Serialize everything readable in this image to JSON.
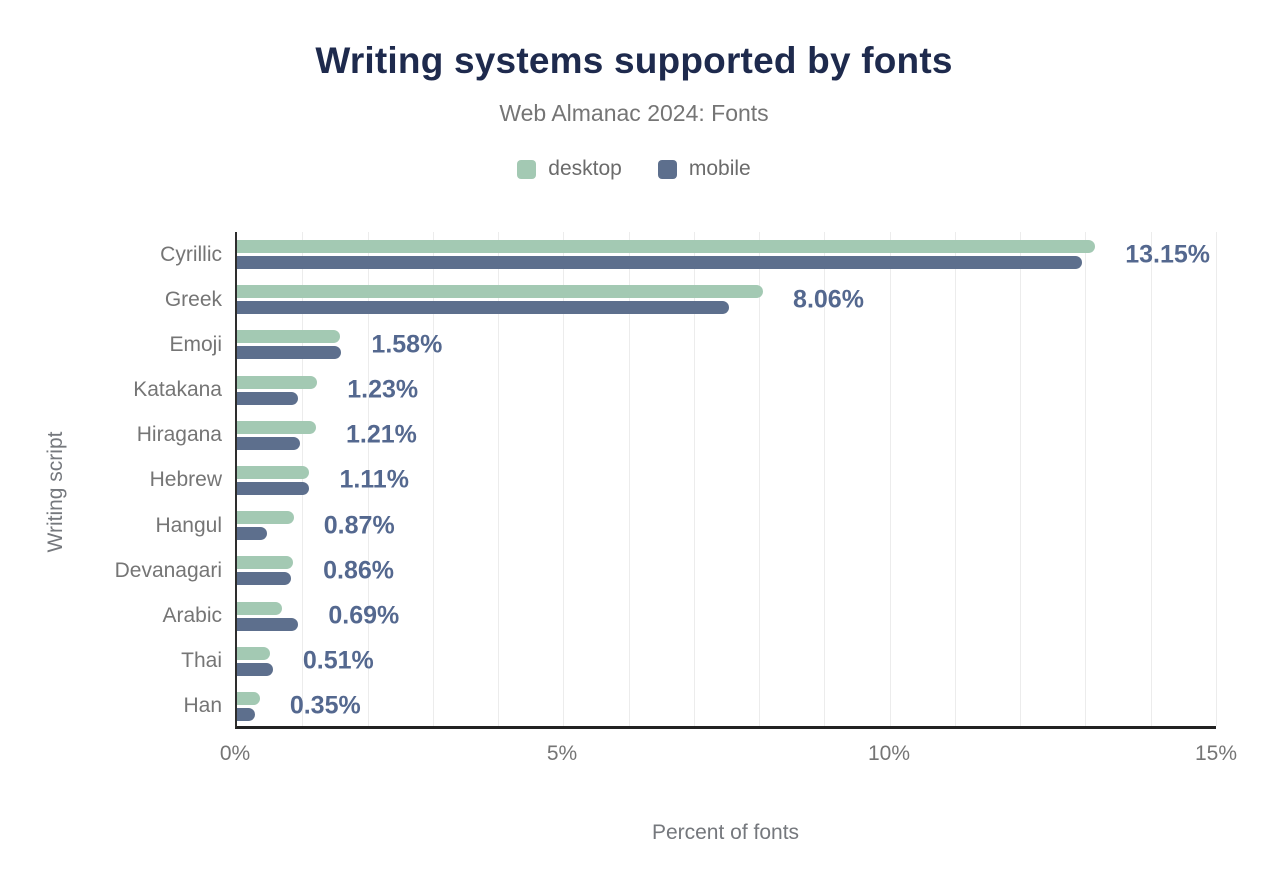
{
  "title": "Writing systems supported by fonts",
  "subtitle": "Web Almanac 2024: Fonts",
  "legend": {
    "items": [
      {
        "label": "desktop",
        "color": "#a3c9b3"
      },
      {
        "label": "mobile",
        "color": "#5d6f8d"
      }
    ]
  },
  "axes": {
    "x_title": "Percent of fonts",
    "y_title": "Writing script",
    "x_ticks": [
      {
        "label": "0%",
        "value": 0
      },
      {
        "label": "5%",
        "value": 5
      },
      {
        "label": "10%",
        "value": 10
      },
      {
        "label": "15%",
        "value": 15
      }
    ]
  },
  "colors": {
    "title_text": "#1e2a4d",
    "subtitle_text": "#757575",
    "axis_text": "#757575",
    "axis_line": "#222222",
    "gridline": "#ececec",
    "desktop_bar": "#a3c9b3",
    "mobile_bar": "#5d6f8d",
    "value_label_text": "#54688f"
  },
  "chart_data": {
    "type": "bar",
    "orientation": "horizontal",
    "title": "Writing systems supported by fonts",
    "subtitle": "Web Almanac 2024: Fonts",
    "xlabel": "Percent of fonts",
    "ylabel": "Writing script",
    "xlim": [
      0,
      15
    ],
    "x_tick_values": [
      0,
      5,
      10,
      15
    ],
    "grid": "vertical gridlines every 1%",
    "legend_position": "top",
    "categories": [
      "Cyrillic",
      "Greek",
      "Emoji",
      "Katakana",
      "Hiragana",
      "Hebrew",
      "Hangul",
      "Devanagari",
      "Arabic",
      "Thai",
      "Han"
    ],
    "series": [
      {
        "name": "desktop",
        "color": "#a3c9b3",
        "values": [
          13.15,
          8.06,
          1.58,
          1.23,
          1.21,
          1.11,
          0.87,
          0.86,
          0.69,
          0.51,
          0.35
        ]
      },
      {
        "name": "mobile",
        "color": "#5d6f8d",
        "values": [
          12.95,
          7.54,
          1.6,
          0.94,
          0.96,
          1.1,
          0.46,
          0.82,
          0.94,
          0.55,
          0.28
        ],
        "note": "unlabeled in chart; values estimated from bar lengths"
      }
    ],
    "value_labels": [
      "13.15%",
      "8.06%",
      "1.58%",
      "1.23%",
      "1.21%",
      "1.11%",
      "0.87%",
      "0.86%",
      "0.69%",
      "0.51%",
      "0.35%"
    ]
  }
}
